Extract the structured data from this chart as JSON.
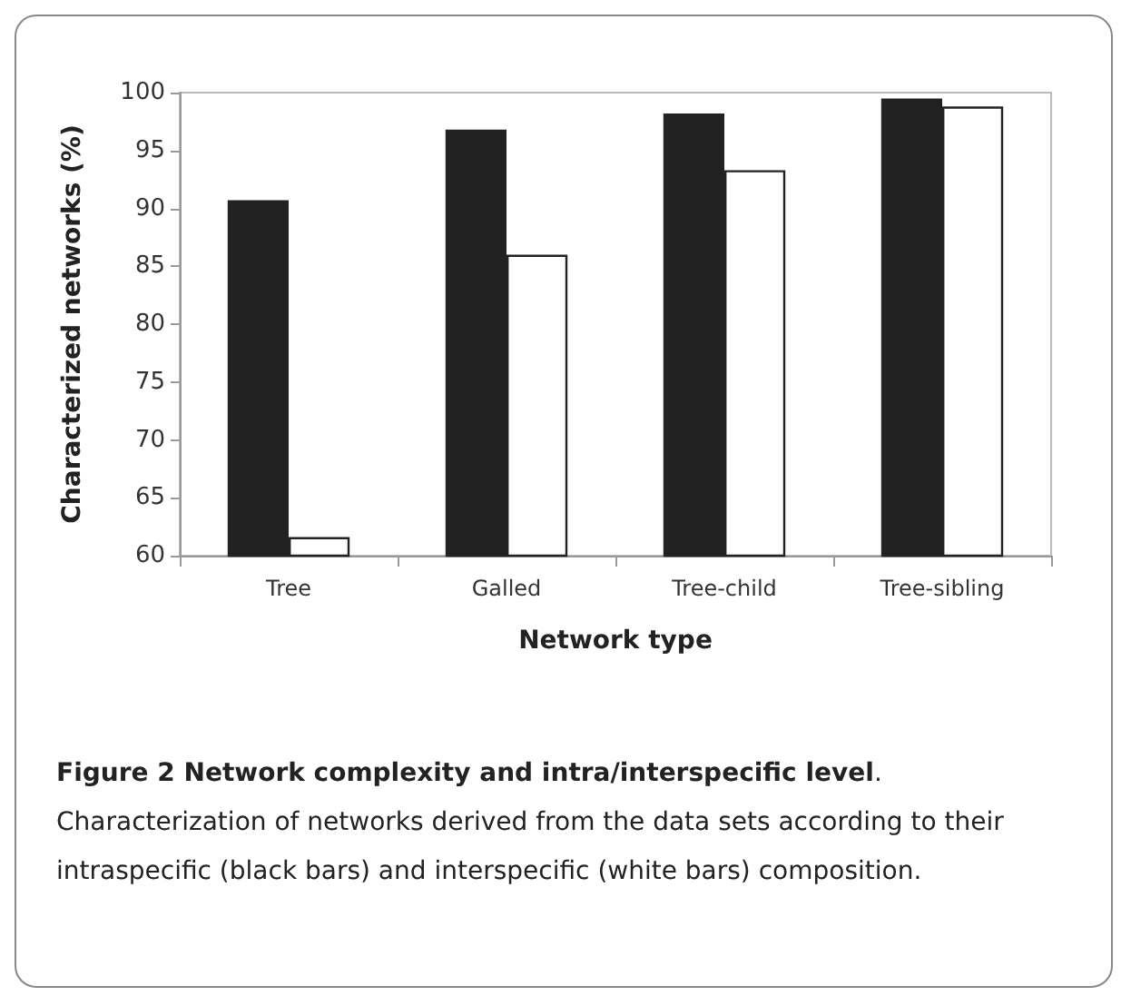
{
  "chart_data": {
    "type": "bar",
    "title": "Figure 2 Network complexity and intra/interspecific level",
    "annotations": [
      ". Characterization of networks derived from the data sets according to their intraspecific (black bars) and interspecific (white bars) composition."
    ],
    "xlabel": "Network type",
    "ylabel": "Characterized networks (%)",
    "categories": [
      "Tree",
      "Galled",
      "Tree-child",
      "Tree-sibling"
    ],
    "series": [
      {
        "color": "#222222",
        "values": [
          90.7,
          96.8,
          98.2,
          99.5
        ]
      },
      {
        "color": "#ffffff",
        "values": [
          61.6,
          86.0,
          93.3,
          98.8
        ]
      }
    ],
    "ylim": [
      60,
      100
    ],
    "yticks": [
      60,
      65,
      70,
      75,
      80,
      85,
      90,
      95,
      100
    ],
    "grid": false
  }
}
